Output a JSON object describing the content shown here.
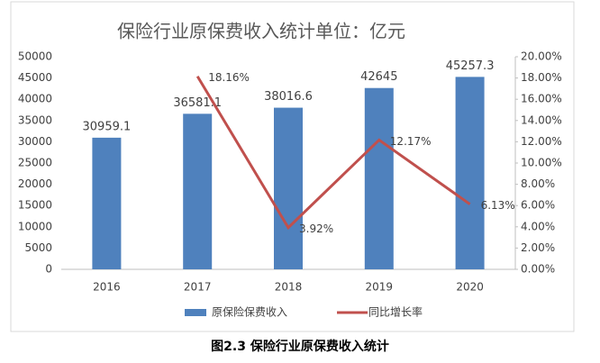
{
  "chart_data": {
    "type": "bar-line",
    "title": "保险行业原保费收入统计单位：亿元",
    "categories": [
      "2016",
      "2017",
      "2018",
      "2019",
      "2020"
    ],
    "series": [
      {
        "name": "原保险保费收入",
        "type": "bar",
        "color": "#4f81bd",
        "values": [
          30959.1,
          36581.1,
          38016.6,
          42645,
          45257.3
        ]
      },
      {
        "name": "同比增长率",
        "type": "line",
        "axis": "y2",
        "color": "#c0504d",
        "values": [
          null,
          18.16,
          3.92,
          12.17,
          6.13
        ],
        "value_labels": [
          null,
          "18.16%",
          "3.92%",
          "12.17%",
          "6.13%"
        ]
      }
    ],
    "ylim": [
      0,
      50000
    ],
    "yticks": [
      0,
      5000,
      10000,
      15000,
      20000,
      25000,
      30000,
      35000,
      40000,
      45000,
      50000
    ],
    "y2lim": [
      0,
      20
    ],
    "y2ticks": [
      {
        "value": 0,
        "label": "0.00%"
      },
      {
        "value": 2,
        "label": "2.00%"
      },
      {
        "value": 4,
        "label": "4.00%"
      },
      {
        "value": 6,
        "label": "6.00%"
      },
      {
        "value": 8,
        "label": "8.00%"
      },
      {
        "value": 10,
        "label": "10.00%"
      },
      {
        "value": 12,
        "label": "12.00%"
      },
      {
        "value": 14,
        "label": "14.00%"
      },
      {
        "value": 16,
        "label": "16.00%"
      },
      {
        "value": 18,
        "label": "18.00%"
      },
      {
        "value": 20,
        "label": "20.00%"
      }
    ],
    "grid": false,
    "legend": "bottom"
  },
  "caption": "图2.3 保险行业原保费收入统计"
}
